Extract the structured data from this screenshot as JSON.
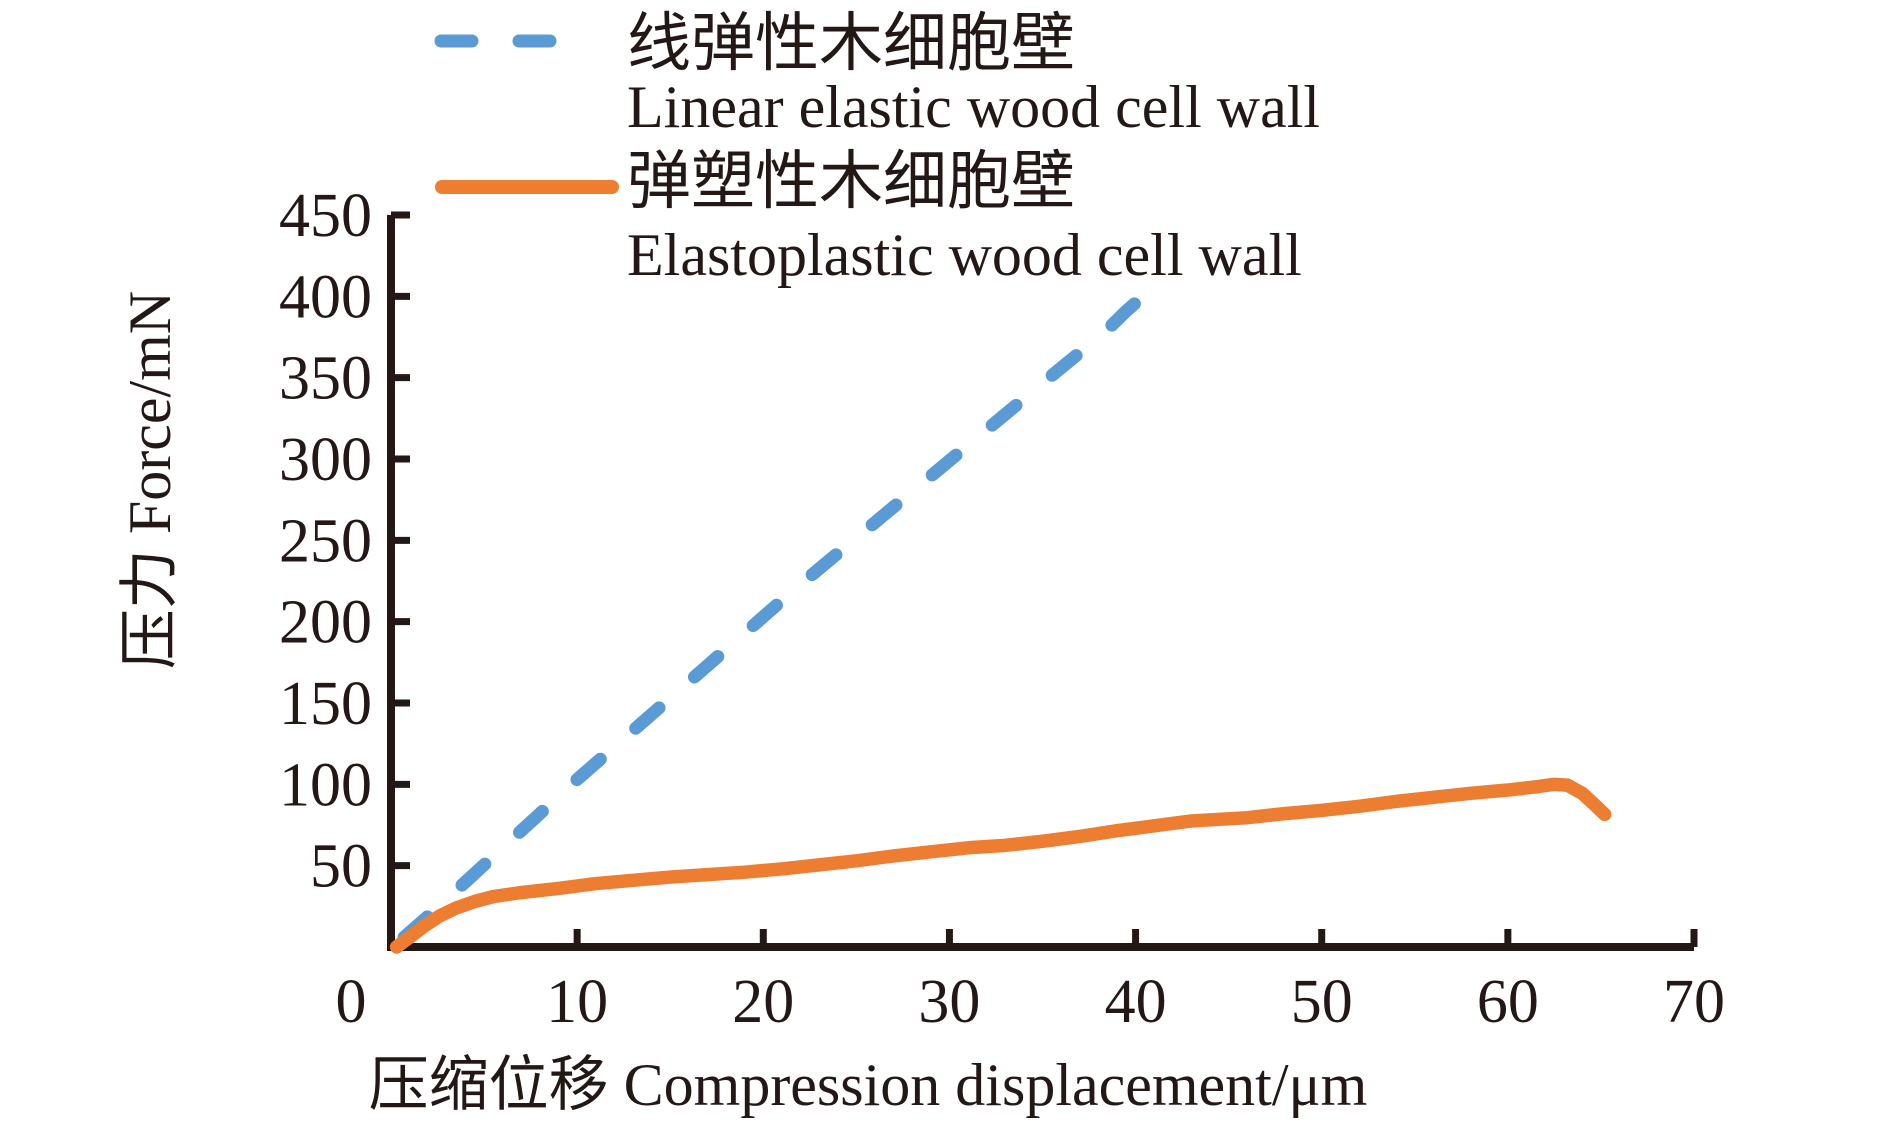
{
  "figure": {
    "background": "#ffffff",
    "text_color": "#231815"
  },
  "legend": {
    "position": "top-left",
    "items": [
      {
        "label_zh": "线弹性木细胞壁",
        "label_en": "Linear elastic wood cell wall",
        "color": "#5b9bd5",
        "line_style": "dashed"
      },
      {
        "label_zh": "弹塑性木细胞壁",
        "label_en": "Elastoplastic wood cell wall",
        "color": "#ed7d31",
        "line_style": "solid"
      }
    ]
  },
  "chart_data": {
    "type": "line",
    "title": "",
    "xlabel": "压缩位移 Compression displacement/μm",
    "ylabel": "压力 Force/mN",
    "xlim": [
      0,
      70
    ],
    "ylim": [
      0,
      450
    ],
    "x_ticks": [
      10,
      20,
      30,
      40,
      50,
      60,
      70
    ],
    "y_ticks": [
      50,
      100,
      150,
      200,
      250,
      300,
      350,
      400,
      450
    ],
    "origin_label": "0",
    "grid": false,
    "axis_color": "#231815",
    "legend_position": "top-left",
    "series": [
      {
        "name": "线弹性木细胞壁 Linear elastic wood cell wall",
        "style": "dashed",
        "color": "#5b9bd5",
        "width": 13,
        "points": [
          [
            0.7,
            6
          ],
          [
            2,
            19
          ],
          [
            4,
            40
          ],
          [
            6,
            61
          ],
          [
            8,
            82
          ],
          [
            10,
            103
          ],
          [
            12,
            123
          ],
          [
            14,
            143
          ],
          [
            16,
            163
          ],
          [
            18,
            183
          ],
          [
            20,
            203
          ],
          [
            22,
            223
          ],
          [
            24,
            242
          ],
          [
            26,
            261
          ],
          [
            28,
            280
          ],
          [
            30,
            299
          ],
          [
            32,
            318
          ],
          [
            34,
            337
          ],
          [
            36,
            356
          ],
          [
            37.5,
            370
          ],
          [
            38.7,
            382
          ],
          [
            39.5,
            391
          ],
          [
            40.1,
            397
          ]
        ]
      },
      {
        "name": "弹塑性木细胞壁 Elastoplastic wood cell wall",
        "style": "solid",
        "color": "#ed7d31",
        "width": 13.5,
        "points": [
          [
            0.3,
            0
          ],
          [
            1,
            6
          ],
          [
            1.8,
            13
          ],
          [
            2.6,
            19
          ],
          [
            3.5,
            24
          ],
          [
            4.5,
            28
          ],
          [
            5.5,
            31
          ],
          [
            7,
            33.5
          ],
          [
            9,
            36
          ],
          [
            11,
            39
          ],
          [
            13,
            41
          ],
          [
            15,
            43
          ],
          [
            17,
            44.5
          ],
          [
            19,
            46
          ],
          [
            21,
            48
          ],
          [
            23,
            50.5
          ],
          [
            25,
            53
          ],
          [
            27,
            56
          ],
          [
            29,
            58.5
          ],
          [
            31,
            61
          ],
          [
            33,
            62.5
          ],
          [
            35,
            65
          ],
          [
            37,
            68
          ],
          [
            39,
            71.5
          ],
          [
            41,
            74.5
          ],
          [
            43,
            77.5
          ],
          [
            44.5,
            78.5
          ],
          [
            46,
            79.5
          ],
          [
            48,
            82
          ],
          [
            50,
            84
          ],
          [
            52,
            86.5
          ],
          [
            54,
            89.5
          ],
          [
            56,
            92
          ],
          [
            58,
            94.5
          ],
          [
            60,
            96.5
          ],
          [
            61.5,
            98.5
          ],
          [
            62.5,
            100
          ],
          [
            63.2,
            99.5
          ],
          [
            64,
            94.5
          ],
          [
            64.7,
            87
          ],
          [
            65.2,
            81.5
          ]
        ]
      }
    ]
  }
}
